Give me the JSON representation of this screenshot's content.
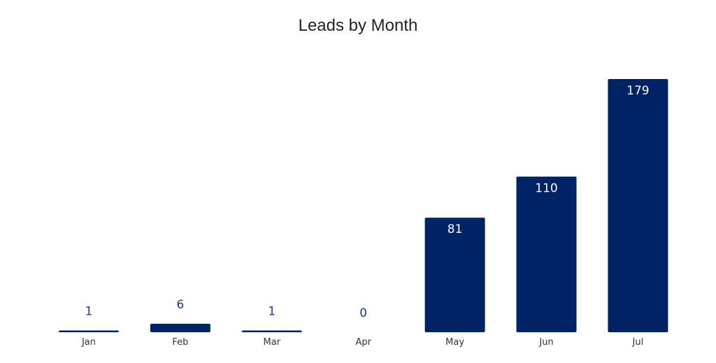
{
  "chart_data": {
    "type": "bar",
    "title": "Leads by Month",
    "xlabel": "",
    "ylabel": "",
    "categories": [
      "Jan",
      "Feb",
      "Mar",
      "Apr",
      "May",
      "Jun",
      "Jul"
    ],
    "values": [
      1,
      6,
      1,
      0,
      81,
      110,
      179
    ],
    "ylim": [
      0,
      179
    ],
    "grid": false,
    "legend": "none",
    "data_labels": true,
    "colors": {
      "bar": "#002366",
      "label_inside": "#ffffff",
      "label_outside": "#1c3a8c",
      "axis_text": "#333333"
    }
  }
}
